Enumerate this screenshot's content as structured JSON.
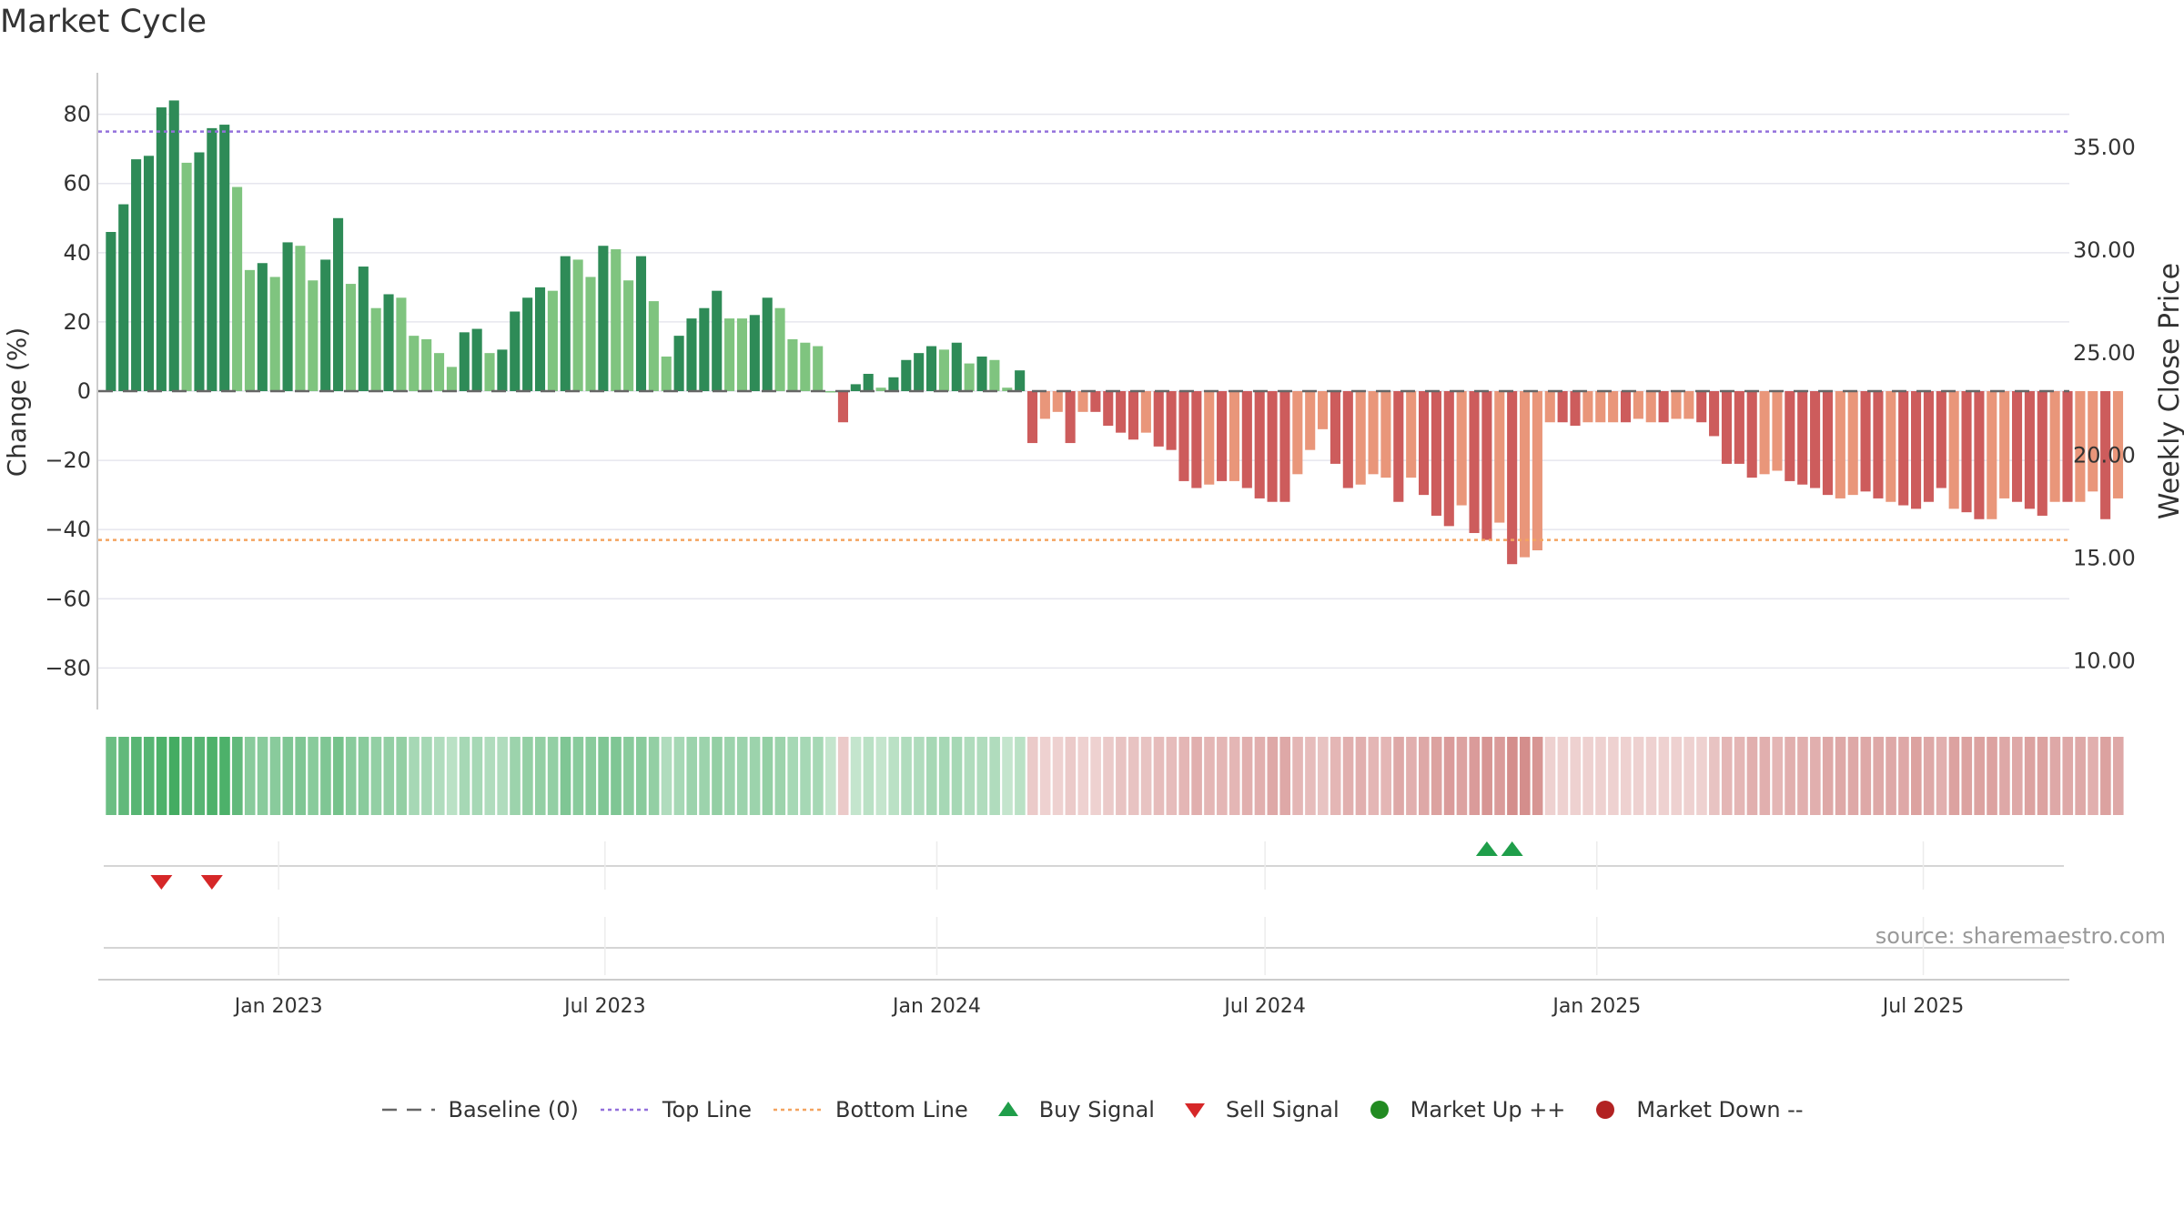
{
  "title": "Market Cycle",
  "source": "source: sharemaestro.com",
  "chart_data": {
    "type": "bar",
    "title": "Market Cycle",
    "ylabel": "Change (%)",
    "y2label": "Weekly Close Price",
    "ylim": [
      -92,
      92
    ],
    "yticks": [
      80,
      60,
      40,
      20,
      0,
      -20,
      -40,
      -60,
      -80
    ],
    "ytick_labels": [
      "80",
      "60",
      "40",
      "20",
      "0",
      "−20",
      "−40",
      "−60",
      "−80"
    ],
    "y2lim": [
      7.63,
      38.63
    ],
    "y2ticks": [
      35,
      30,
      25,
      20,
      15,
      10
    ],
    "y2tick_labels": [
      "35.00",
      "30.00",
      "25.00",
      "20.00",
      "15.00",
      "10.00"
    ],
    "xlim": [
      "2022-09-23",
      "2025-09-20"
    ],
    "xticks": [
      "2023-01-01",
      "2023-07-01",
      "2024-01-01",
      "2024-07-01",
      "2025-01-01",
      "2025-07-01"
    ],
    "xtick_labels": [
      "Jan 2023",
      "Jul 2023",
      "Jan 2024",
      "Jul 2024",
      "Jan 2025",
      "Jul 2025"
    ],
    "start_week": "2022-09-30",
    "values": [
      46,
      54,
      67,
      68,
      82,
      84,
      66,
      69,
      76,
      77,
      59,
      35,
      37,
      33,
      43,
      42,
      32,
      38,
      50,
      31,
      36,
      24,
      28,
      27,
      16,
      15,
      11,
      7,
      17,
      18,
      11,
      12,
      23,
      27,
      30,
      29,
      39,
      38,
      33,
      42,
      41,
      32,
      39,
      26,
      10,
      16,
      21,
      24,
      29,
      21,
      21,
      22,
      27,
      24,
      15,
      14,
      13,
      0,
      -9,
      2,
      5,
      1,
      4,
      9,
      11,
      13,
      12,
      14,
      8,
      10,
      9,
      1,
      6,
      -15,
      -8,
      -6,
      -15,
      -6,
      -6,
      -10,
      -12,
      -14,
      -12,
      -16,
      -17,
      -26,
      -28,
      -27,
      -26,
      -26,
      -28,
      -31,
      -32,
      -32,
      -24,
      -17,
      -11,
      -21,
      -28,
      -27,
      -24,
      -25,
      -32,
      -25,
      -30,
      -36,
      -39,
      -33,
      -41,
      -43,
      -38,
      -50,
      -48,
      -46,
      -9,
      -9,
      -10,
      -9,
      -9,
      -9,
      -9,
      -8,
      -9,
      -9,
      -8,
      -8,
      -9,
      -13,
      -21,
      -21,
      -25,
      -24,
      -23,
      -26,
      -27,
      -28,
      -30,
      -31,
      -30,
      -29,
      -31,
      -32,
      -33,
      -34,
      -32,
      -28,
      -34,
      -35,
      -37,
      -37,
      -31,
      -32,
      -34,
      -36,
      -32,
      -32,
      -32,
      -29,
      -37,
      -31
    ],
    "shades": [
      "d",
      "d",
      "d",
      "d",
      "d",
      "d",
      "l",
      "d",
      "d",
      "d",
      "l",
      "l",
      "d",
      "l",
      "d",
      "l",
      "l",
      "d",
      "d",
      "l",
      "d",
      "l",
      "d",
      "l",
      "l",
      "l",
      "l",
      "l",
      "d",
      "d",
      "l",
      "d",
      "d",
      "d",
      "d",
      "l",
      "d",
      "l",
      "l",
      "d",
      "l",
      "l",
      "d",
      "l",
      "l",
      "d",
      "d",
      "d",
      "d",
      "l",
      "l",
      "d",
      "d",
      "l",
      "l",
      "l",
      "l",
      "l",
      "d",
      "d",
      "d",
      "l",
      "d",
      "d",
      "d",
      "d",
      "l",
      "d",
      "l",
      "d",
      "l",
      "l",
      "d",
      "d",
      "l",
      "l",
      "d",
      "l",
      "d",
      "d",
      "d",
      "d",
      "l",
      "d",
      "d",
      "d",
      "d",
      "l",
      "d",
      "l",
      "d",
      "d",
      "d",
      "d",
      "l",
      "l",
      "l",
      "d",
      "d",
      "l",
      "l",
      "l",
      "d",
      "l",
      "d",
      "d",
      "d",
      "l",
      "d",
      "d",
      "l",
      "d",
      "l",
      "l",
      "l",
      "d",
      "d",
      "l",
      "l",
      "l",
      "d",
      "l",
      "l",
      "d",
      "l",
      "l",
      "d",
      "d",
      "d",
      "d",
      "d",
      "l",
      "l",
      "d",
      "d",
      "d",
      "d",
      "l",
      "l",
      "d",
      "d",
      "l",
      "d",
      "d",
      "d",
      "d",
      "l",
      "d",
      "d",
      "l",
      "l",
      "d",
      "d",
      "d",
      "l",
      "d",
      "l",
      "l",
      "d",
      "l"
    ],
    "top_line": 75,
    "bottom_line": -43,
    "strip_opacity": [
      0.75,
      0.8,
      0.85,
      0.85,
      0.9,
      0.95,
      0.85,
      0.85,
      0.9,
      0.9,
      0.8,
      0.6,
      0.6,
      0.6,
      0.65,
      0.65,
      0.6,
      0.65,
      0.7,
      0.6,
      0.6,
      0.55,
      0.55,
      0.55,
      0.45,
      0.45,
      0.4,
      0.35,
      0.45,
      0.45,
      0.4,
      0.4,
      0.5,
      0.55,
      0.55,
      0.55,
      0.65,
      0.6,
      0.6,
      0.65,
      0.65,
      0.6,
      0.6,
      0.55,
      0.4,
      0.45,
      0.5,
      0.5,
      0.55,
      0.5,
      0.5,
      0.5,
      0.55,
      0.5,
      0.45,
      0.45,
      0.45,
      0.3,
      0.4,
      0.3,
      0.35,
      0.3,
      0.35,
      0.4,
      0.4,
      0.45,
      0.45,
      0.45,
      0.4,
      0.4,
      0.4,
      0.3,
      0.35,
      0.4,
      0.35,
      0.35,
      0.4,
      0.35,
      0.35,
      0.4,
      0.45,
      0.45,
      0.45,
      0.5,
      0.5,
      0.55,
      0.6,
      0.55,
      0.55,
      0.55,
      0.6,
      0.6,
      0.65,
      0.65,
      0.55,
      0.5,
      0.45,
      0.55,
      0.6,
      0.6,
      0.55,
      0.55,
      0.65,
      0.6,
      0.65,
      0.7,
      0.75,
      0.7,
      0.75,
      0.8,
      0.75,
      0.85,
      0.85,
      0.8,
      0.35,
      0.35,
      0.35,
      0.35,
      0.35,
      0.35,
      0.35,
      0.35,
      0.35,
      0.35,
      0.35,
      0.35,
      0.35,
      0.45,
      0.55,
      0.55,
      0.6,
      0.6,
      0.55,
      0.6,
      0.6,
      0.6,
      0.65,
      0.65,
      0.65,
      0.65,
      0.65,
      0.65,
      0.65,
      0.7,
      0.65,
      0.6,
      0.7,
      0.7,
      0.7,
      0.7,
      0.65,
      0.65,
      0.7,
      0.7,
      0.65,
      0.65,
      0.65,
      0.6,
      0.7,
      0.65
    ],
    "buy_signal_weeks": [
      109,
      111
    ],
    "sell_signal_weeks": [
      4,
      8
    ],
    "legend": [
      "Baseline (0)",
      "Top Line",
      "Bottom Line",
      "Buy Signal",
      "Sell Signal",
      "Market Up ++",
      "Market Down --"
    ],
    "colors": {
      "up_dark": "#2e8b57",
      "up_light": "#7fc47f",
      "down_dark": "#cd5c5c",
      "down_light": "#e9967a",
      "strip_up": "#3aa85a",
      "strip_down": "#cd7a78",
      "top_line": "#9370db",
      "bottom_line": "#f4a460",
      "baseline": "#666666",
      "buy": "#1f9e4a",
      "sell": "#d62728",
      "market_up": "#228b22",
      "market_down": "#b22222",
      "grid": "#e6e6ee"
    }
  }
}
